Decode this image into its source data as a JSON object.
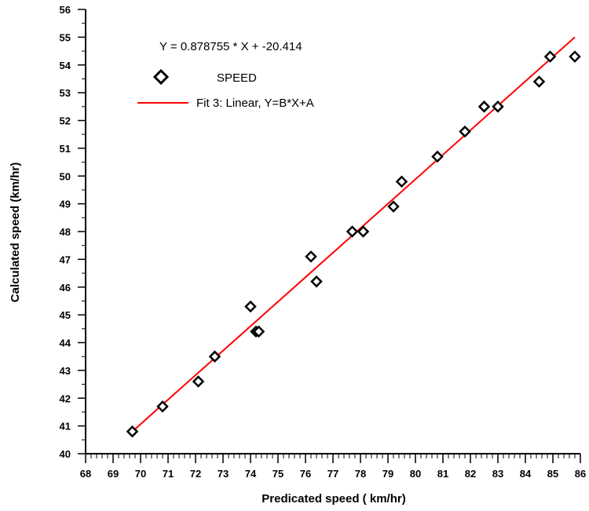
{
  "chart_data": {
    "type": "scatter",
    "xlabel": "Predicated speed ( km/hr)",
    "ylabel": "Calculated  speed (km/hr)",
    "xlim": [
      68,
      86
    ],
    "ylim": [
      40,
      56
    ],
    "x_ticks": [
      "68",
      "69",
      "70",
      "71",
      "72",
      "73",
      "74",
      "75",
      "76",
      "77",
      "78",
      "79",
      "80",
      "81",
      "82",
      "83",
      "84",
      "85",
      "86"
    ],
    "y_ticks": [
      "40",
      "41",
      "42",
      "43",
      "44",
      "45",
      "46",
      "47",
      "48",
      "49",
      "50",
      "51",
      "52",
      "53",
      "54",
      "55",
      "56"
    ],
    "annotation": "Y = 0.878755 * X + -20.414",
    "series": [
      {
        "name": "SPEED",
        "marker": "diamond",
        "color": "#000000",
        "x": [
          69.7,
          70.8,
          72.1,
          72.7,
          74.0,
          74.2,
          74.3,
          76.2,
          76.4,
          77.7,
          78.1,
          79.2,
          79.5,
          80.8,
          81.8,
          82.5,
          83.0,
          84.5,
          84.9,
          85.8
        ],
        "y": [
          40.8,
          41.7,
          42.6,
          43.5,
          45.3,
          44.4,
          44.4,
          47.1,
          46.2,
          48.0,
          48.0,
          48.9,
          49.8,
          50.7,
          51.6,
          52.5,
          52.5,
          53.4,
          54.3,
          54.3
        ]
      },
      {
        "name": "Fit 3:  Linear, Y=B*X+A",
        "type": "line",
        "color": "#ff0000",
        "x": [
          69.7,
          85.8
        ],
        "y": [
          40.8,
          55.0
        ]
      }
    ],
    "legend_placement": "top-left",
    "grid": false
  }
}
